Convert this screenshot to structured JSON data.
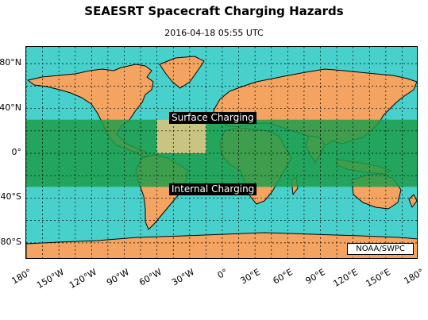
{
  "title": "SEAESRT Spacecraft Charging Hazards",
  "timestamp": "2016-04-18 05:55 UTC",
  "credit": "NOAA/SWPC",
  "colors": {
    "ocean": "#48d1cc",
    "land": "#f4a460",
    "band": "#1f9e4a",
    "highlight": "#e7c98a",
    "grid": "#000000"
  },
  "bands": {
    "surface_label": "Surface Charging",
    "internal_label": "Internal Charging",
    "lat_range": [
      -30,
      30
    ]
  },
  "highlight_box": {
    "lon_range": [
      -60,
      -15
    ],
    "lat_range": [
      0,
      30
    ]
  },
  "axes": {
    "lon_ticks": [
      "180°",
      "150°W",
      "120°W",
      "90°W",
      "60°W",
      "30°W",
      "0°",
      "30°E",
      "60°E",
      "90°E",
      "120°E",
      "150°E",
      "180°"
    ],
    "lat_ticks": [
      "80°N",
      "40°N",
      "0°",
      "40°S",
      "80°S"
    ],
    "lat_tick_values": [
      80,
      40,
      0,
      -40,
      -80
    ]
  }
}
